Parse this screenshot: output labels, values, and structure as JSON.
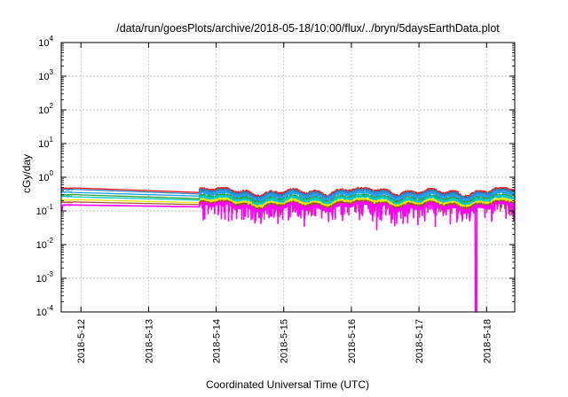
{
  "chart_data": {
    "type": "line",
    "title": "/data/run/goesPlots/archive/2018-05-18/10:00/flux/../bryn/5daysEarthData.plot",
    "xlabel": "Coordinated Universal Time (UTC)",
    "ylabel": "cGy/day",
    "y_scale": "log",
    "ylim": [
      0.0001,
      10000
    ],
    "xlim": [
      "2018-05-11T17:00",
      "2018-05-18T10:00"
    ],
    "grid": true,
    "legend": "none",
    "y_ticks": [
      {
        "base": "10",
        "exp": "-4"
      },
      {
        "base": "10",
        "exp": "-3"
      },
      {
        "base": "10",
        "exp": "-2"
      },
      {
        "base": "10",
        "exp": "-1"
      },
      {
        "base": "10",
        "exp": "0"
      },
      {
        "base": "10",
        "exp": "1"
      },
      {
        "base": "10",
        "exp": "2"
      },
      {
        "base": "10",
        "exp": "3"
      },
      {
        "base": "10",
        "exp": "4"
      }
    ],
    "x_ticks": [
      "2018-5-12",
      "2018-5-13",
      "2018-5-14",
      "2018-5-15",
      "2018-5-16",
      "2018-5-17",
      "2018-5-18"
    ],
    "data_gap": [
      "2018-05-11T21:00",
      "2018-05-13T18:00"
    ],
    "series": [
      {
        "color": "#e41a1c",
        "start_value": 0.47,
        "typical_value": 0.32,
        "high_value": 0.46
      },
      {
        "color": "#377eb8",
        "start_value": 0.43,
        "typical_value": 0.29,
        "high_value": 0.42
      },
      {
        "color": "#1fa0ff",
        "start_value": 0.36,
        "typical_value": 0.25,
        "high_value": 0.36
      },
      {
        "color": "#2ca02c",
        "start_value": 0.3,
        "typical_value": 0.21,
        "high_value": 0.29
      },
      {
        "color": "#00c8c8",
        "start_value": 0.27,
        "typical_value": 0.19,
        "high_value": 0.27
      },
      {
        "color": "#e6e600",
        "start_value": 0.21,
        "typical_value": 0.16,
        "high_value": 0.22
      },
      {
        "color": "#a0522d",
        "start_value": 0.18,
        "typical_value": 0.14,
        "high_value": 0.19
      },
      {
        "color": "#ff00ff",
        "start_value": 0.15,
        "typical_value": 0.12,
        "high_value": 0.17,
        "dip_at": "2018-05-17T20:15",
        "dip_min": 0.0001
      }
    ]
  }
}
